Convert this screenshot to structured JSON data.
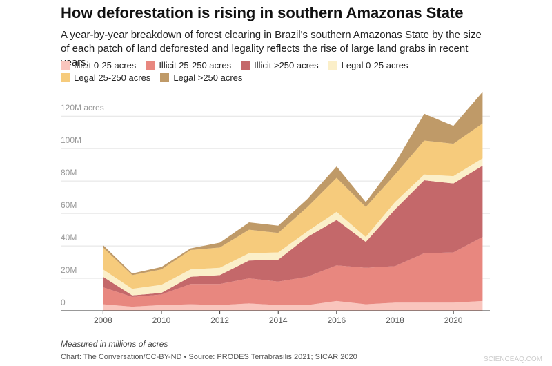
{
  "chart_data": {
    "type": "stacked-area",
    "title": "How deforestation is rising in southern Amazonas State",
    "subtitle": "A year-by-year breakdown of forest clearing in Brazil's southern Amazonas State by the size of each patch of land deforested and legality reflects the rise of large land grabs in recent years.",
    "x": [
      2008,
      2009,
      2010,
      2011,
      2012,
      2013,
      2014,
      2015,
      2016,
      2017,
      2018,
      2019,
      2020,
      2021
    ],
    "series": [
      {
        "name": "Illicit 0-25 acres",
        "color": "#f9c5bd",
        "values": [
          4,
          2.5,
          3.5,
          4,
          3.5,
          4.5,
          3.5,
          3.5,
          6,
          4,
          5,
          5,
          5,
          6
        ]
      },
      {
        "name": "Illicit 25-250 acres",
        "color": "#e8877f",
        "values": [
          10.5,
          6,
          6.5,
          12.5,
          13,
          15.5,
          14.5,
          17.5,
          22,
          22.5,
          22.5,
          30.5,
          31,
          39.5
        ]
      },
      {
        "name": "Illicit >250 acres",
        "color": "#c4686a",
        "values": [
          6.5,
          1,
          1,
          4.5,
          5.5,
          11,
          13.5,
          24.5,
          28,
          16,
          35,
          45,
          42.5,
          44
        ]
      },
      {
        "name": "Legal 0-25 acres",
        "color": "#fbefc9",
        "values": [
          4.5,
          4,
          5,
          4.5,
          4.5,
          4.5,
          4.5,
          3.5,
          5,
          3,
          4.5,
          3.5,
          4.5,
          4.5
        ]
      },
      {
        "name": "Legal 25-250 acres",
        "color": "#f6cb7c",
        "values": [
          13.5,
          8.5,
          9.5,
          12,
          12.5,
          14.5,
          12,
          15,
          21,
          18.5,
          17,
          21,
          20,
          21.5
        ]
      },
      {
        "name": "Legal >250 acres",
        "color": "#bf9a68",
        "values": [
          1.5,
          1,
          1.5,
          1,
          3,
          4.5,
          4.5,
          5,
          7,
          3,
          7,
          16.5,
          11,
          19.5
        ]
      }
    ],
    "xlim": [
      2006.55,
      2021.25
    ],
    "xticks": [
      2008,
      2010,
      2012,
      2014,
      2016,
      2018,
      2020
    ],
    "ylim": [
      0,
      135
    ],
    "yticks": [
      0,
      {
        "value": 20,
        "label": "20M"
      },
      {
        "value": 40,
        "label": "40M"
      },
      {
        "value": 60,
        "label": "60M"
      },
      {
        "value": 80,
        "label": "80M"
      },
      {
        "value": 100,
        "label": "100M"
      },
      {
        "value": 120,
        "label": "120M acres"
      }
    ],
    "grid": true,
    "note": "Measured in millions of acres",
    "source": "Chart: The Conversation/CC-BY-ND • Source: PRODES Terrabrasilis 2021; SICAR 2020",
    "watermark": "SCIENCEAQ.COM"
  }
}
